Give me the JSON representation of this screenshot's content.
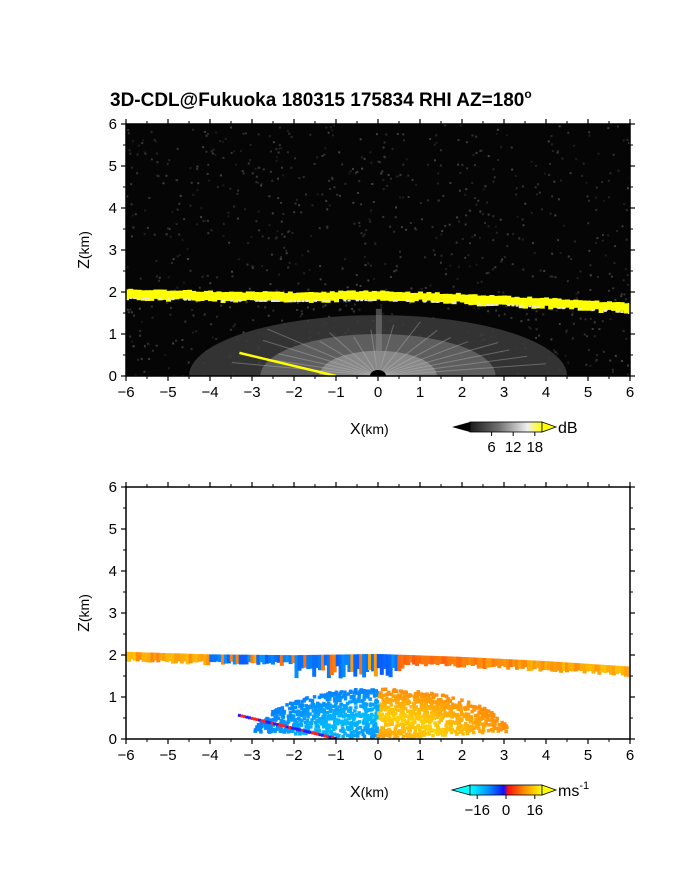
{
  "chart_data": {
    "title_main": "3D-CDL@Fukuoka 180315 175834 RHI AZ=180",
    "title_deg": "o",
    "charts": [
      {
        "id": "intensity",
        "type": "heatmap",
        "quantity": "backscatter intensity",
        "xlabel_main": "X",
        "xlabel_unit": "(km)",
        "ylabel_main": "Z",
        "ylabel_unit": "(km)",
        "xlim": [
          -6,
          6
        ],
        "ylim": [
          0,
          6
        ],
        "xticks": [
          "-6",
          "-5",
          "-4",
          "-3",
          "-2",
          "-1",
          "0",
          "1",
          "2",
          "3",
          "4",
          "5",
          "6"
        ],
        "yticks": [
          "0",
          "1",
          "2",
          "3",
          "4",
          "5",
          "6"
        ],
        "colorbar": {
          "unit": "dB",
          "ticks": [
            "6",
            "12",
            "18"
          ],
          "tick_values": [
            6,
            12,
            18
          ],
          "range": [
            0,
            20
          ],
          "colormap": "grayscale-to-yellow"
        },
        "features": {
          "background": "low-level noise, black",
          "cloud_base_layer": {
            "x": [
              -6,
              -4,
              -2,
              0,
              2,
              4,
              6
            ],
            "z": [
              1.98,
              1.92,
              1.9,
              1.93,
              1.86,
              1.76,
              1.63
            ],
            "value_db": 20,
            "color": "#ffff00"
          },
          "boundary_layer_fan": {
            "xlim": [
              -4.5,
              4.5
            ],
            "zmax": 1.45,
            "value_db": "6-12"
          },
          "surface_streak": {
            "x": [
              -3.3,
              -1.0
            ],
            "z": [
              0.55,
              0.0
            ],
            "color": "#ffff00"
          }
        }
      },
      {
        "id": "velocity",
        "type": "heatmap",
        "quantity": "radial velocity",
        "xlabel_main": "X",
        "xlabel_unit": "(km)",
        "ylabel_main": "Z",
        "ylabel_unit": "(km)",
        "xlim": [
          -6,
          6
        ],
        "ylim": [
          0,
          6
        ],
        "xticks": [
          "-6",
          "-5",
          "-4",
          "-3",
          "-2",
          "-1",
          "0",
          "1",
          "2",
          "3",
          "4",
          "5",
          "6"
        ],
        "yticks": [
          "0",
          "1",
          "2",
          "3",
          "4",
          "5",
          "6"
        ],
        "colorbar": {
          "unit_main": "ms",
          "unit_exp": "-1",
          "ticks": [
            "-16",
            "0",
            "16"
          ],
          "tick_values": [
            -16,
            0,
            16
          ],
          "range": [
            -20,
            20
          ],
          "colormap": "cyan-blue-red-yellow"
        },
        "features": {
          "background": "no data, white",
          "layer_at_2km": {
            "x": [
              -6,
              -4,
              -2,
              0,
              2,
              4,
              6
            ],
            "z": [
              1.98,
              1.92,
              1.9,
              1.93,
              1.86,
              1.76,
              1.63
            ],
            "velocity_ms": {
              "west": 12,
              "middle": -8,
              "east": 14
            }
          },
          "low_level_outflow": {
            "west_side_ms": -14,
            "east_side_ms": 16,
            "zmax": 1.2
          }
        }
      }
    ]
  }
}
